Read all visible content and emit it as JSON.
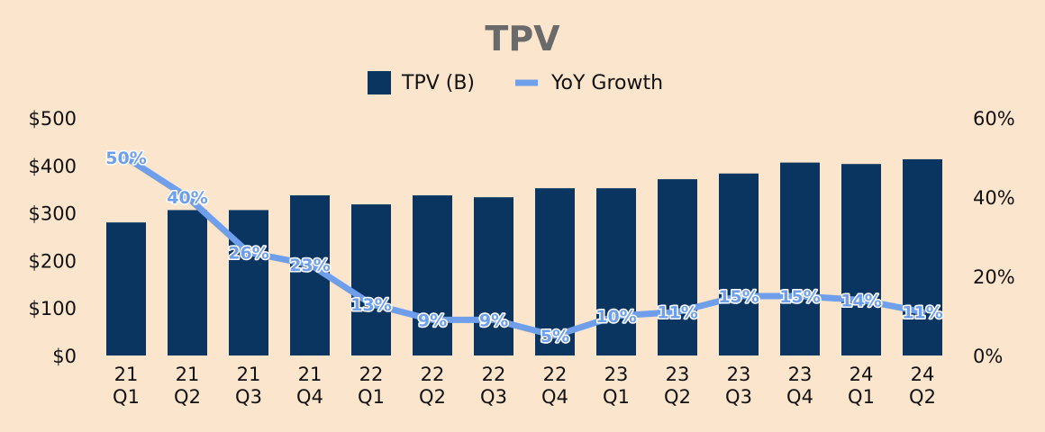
{
  "chart_data": {
    "type": "bar",
    "title": "TPV",
    "categories": [
      [
        "21",
        "Q1"
      ],
      [
        "21",
        "Q2"
      ],
      [
        "21",
        "Q3"
      ],
      [
        "21",
        "Q4"
      ],
      [
        "22",
        "Q1"
      ],
      [
        "22",
        "Q2"
      ],
      [
        "22",
        "Q3"
      ],
      [
        "22",
        "Q4"
      ],
      [
        "23",
        "Q1"
      ],
      [
        "23",
        "Q2"
      ],
      [
        "23",
        "Q3"
      ],
      [
        "23",
        "Q4"
      ],
      [
        "24",
        "Q1"
      ],
      [
        "24",
        "Q2"
      ]
    ],
    "series": [
      {
        "name": "TPV (B)",
        "type": "bar",
        "axis": "left",
        "color": "#0a3560",
        "values": [
          280,
          306,
          306,
          337,
          318,
          337,
          333,
          352,
          352,
          371,
          383,
          406,
          403,
          413
        ]
      },
      {
        "name": "YoY Growth",
        "type": "line",
        "axis": "right",
        "color": "#6f9fea",
        "values": [
          50,
          40,
          26,
          23,
          13,
          9,
          9,
          5,
          10,
          11,
          15,
          15,
          14,
          11
        ],
        "data_labels": [
          "50%",
          "40%",
          "26%",
          "23%",
          "13%",
          "9%",
          "9%",
          "5%",
          "10%",
          "11%",
          "15%",
          "15%",
          "14%",
          "11%"
        ]
      }
    ],
    "y_left": {
      "ylim": [
        0,
        500
      ],
      "ticks": [
        "$0",
        "$100",
        "$200",
        "$300",
        "$400",
        "$500"
      ]
    },
    "y_right": {
      "ylim": [
        0,
        60
      ],
      "ticks": [
        "0%",
        "20%",
        "40%",
        "60%"
      ]
    },
    "legend": {
      "position": "top"
    },
    "grid": false
  },
  "colors": {
    "background": "#fbe5cd",
    "bar": "#0a3560",
    "line": "#6f9fea",
    "title": "#6a6a6a"
  }
}
